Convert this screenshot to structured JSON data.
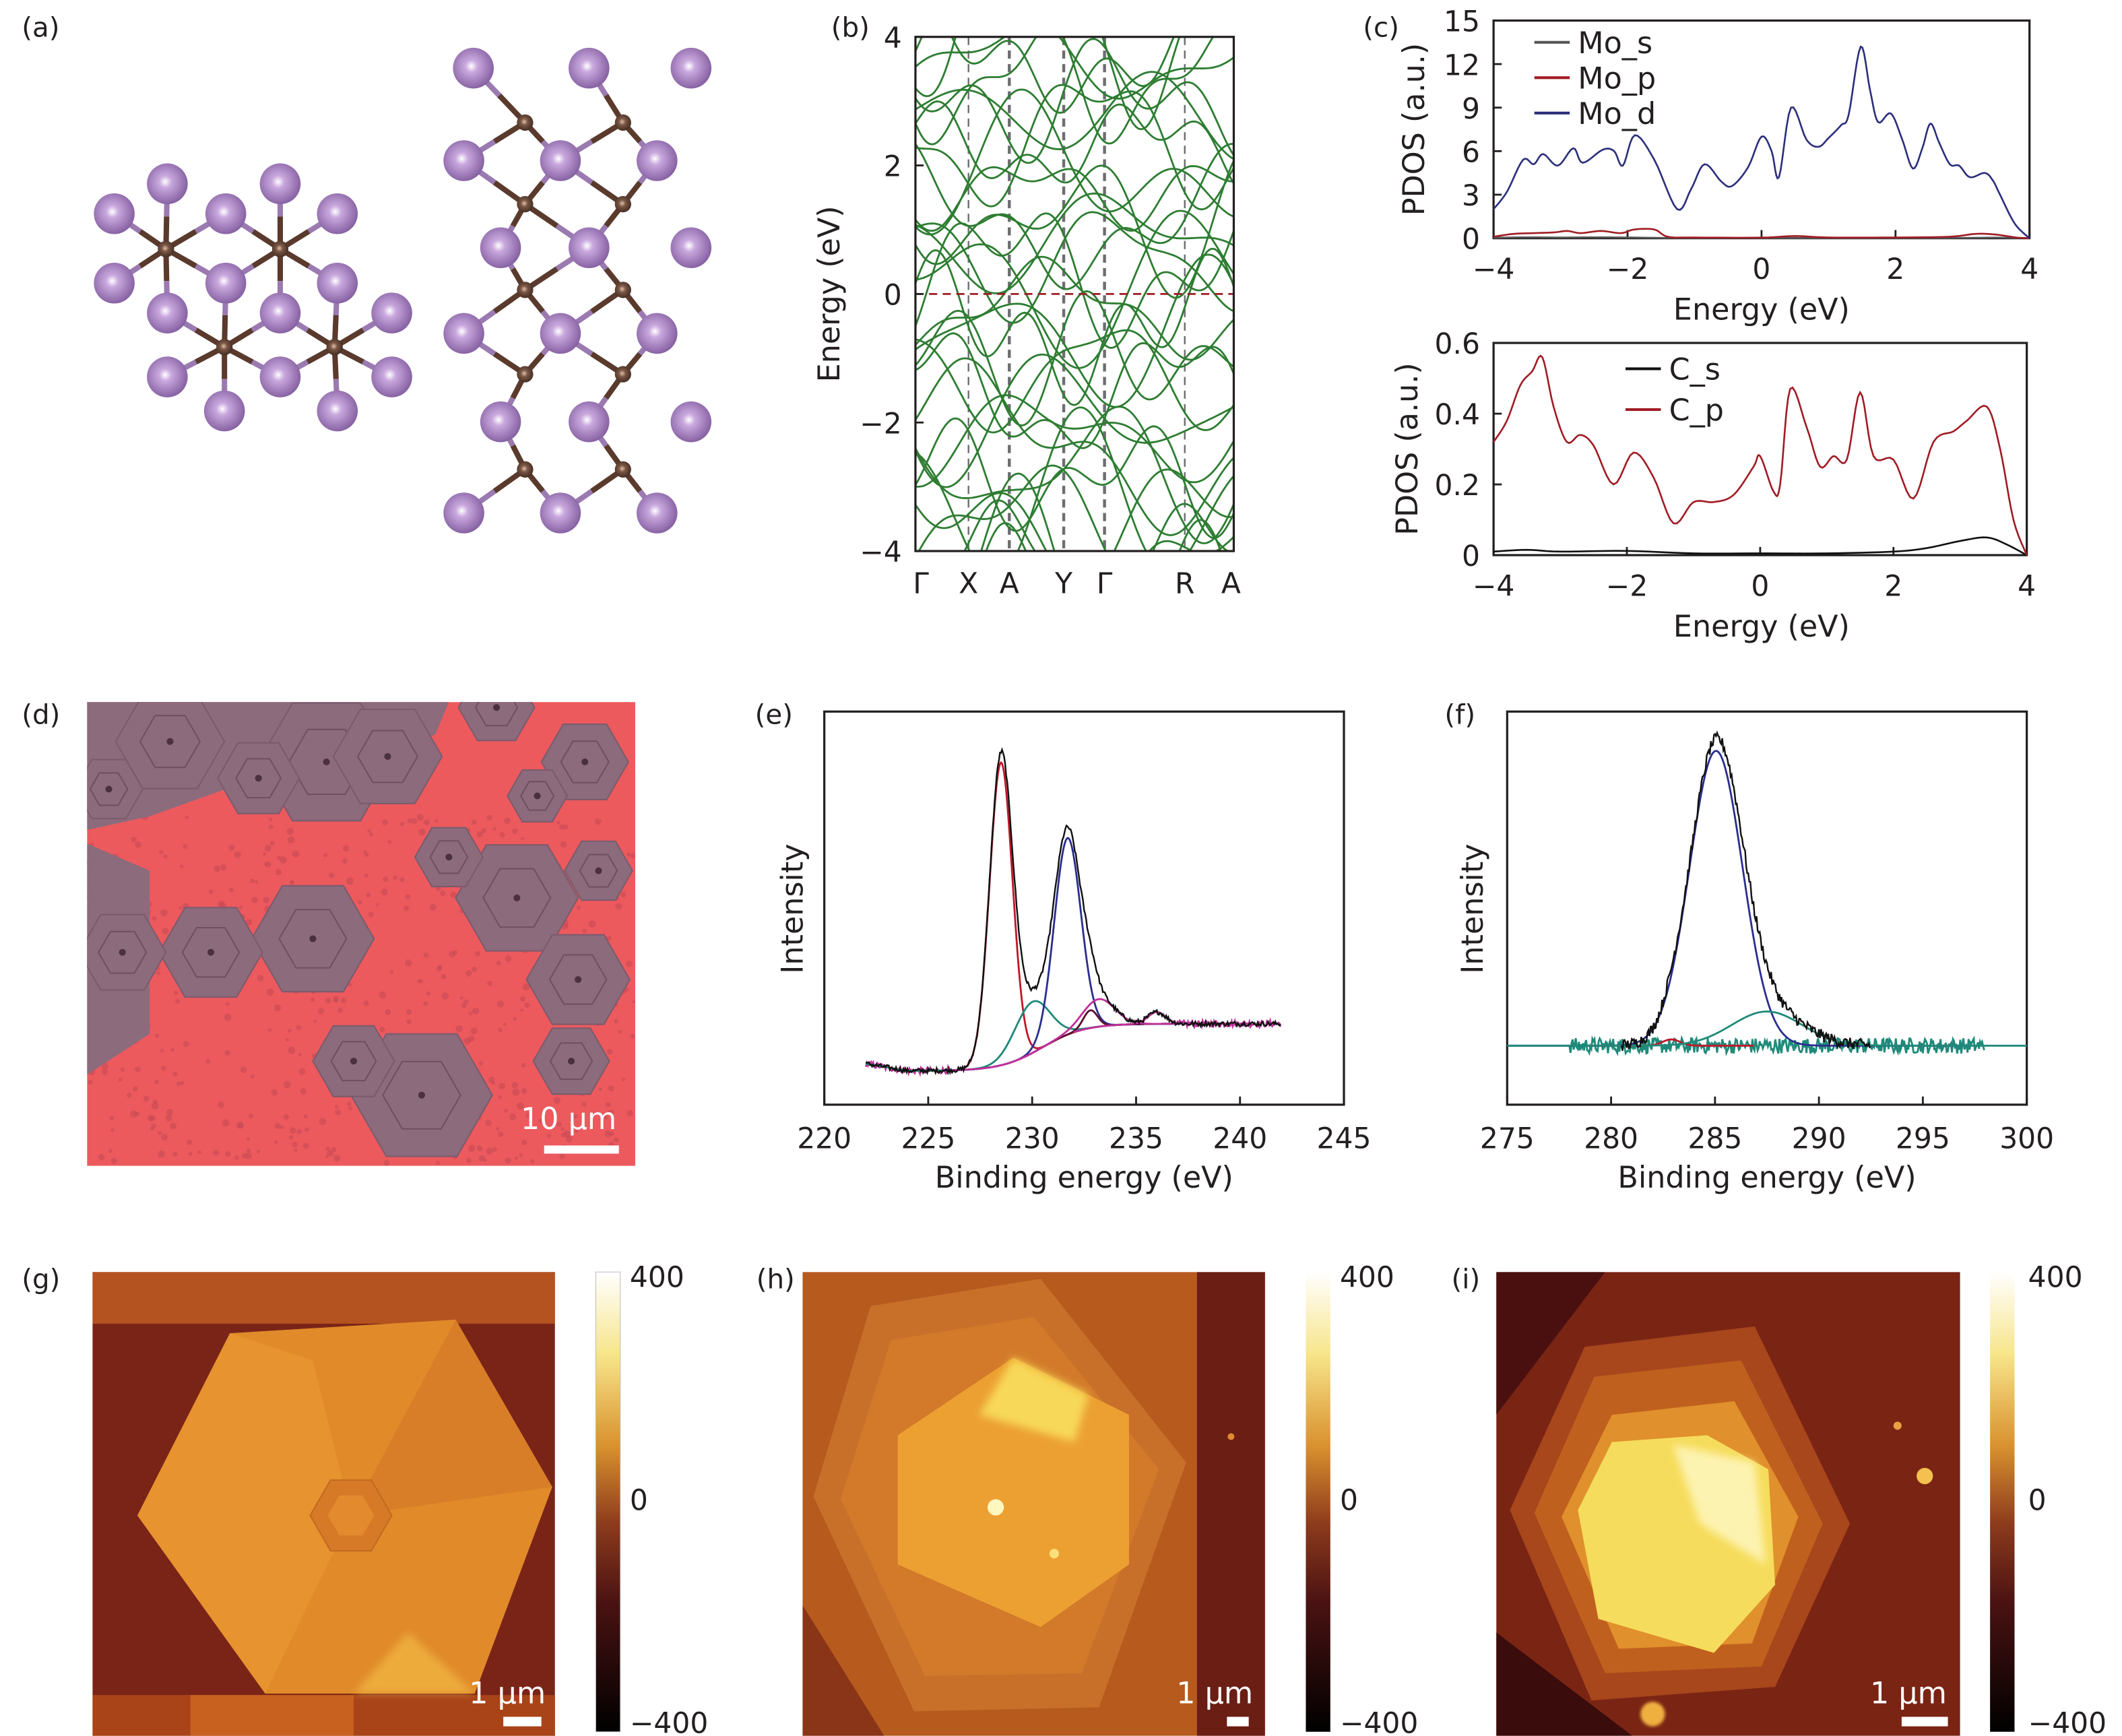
{
  "panel_labels": {
    "a": "(a)",
    "b": "(b)",
    "c": "(c)",
    "d": "(d)",
    "e": "(e)",
    "f": "(f)",
    "g": "(g)",
    "h": "(h)",
    "i": "(i)"
  },
  "colors": {
    "band": "#2e7d32",
    "fermi": "#a01c24",
    "Mo_s": "#555555",
    "Mo_p": "#a01c24",
    "Mo_d": "#2b2f7a",
    "C_s": "#111111",
    "C_p": "#a01c24",
    "xps_data": "#111111",
    "xps_red": "#c0182a",
    "xps_blue": "#2b2f8f",
    "xps_cyan": "#1f8a7a",
    "xps_magenta": "#c0309a",
    "xps_dark": "#5a1030",
    "xps_bg": "#c0309a",
    "atom_large": "#9b74b8",
    "atom_small": "#6a4a3a",
    "substrate": "#ec5a5e",
    "flake": "#8c6b7c"
  },
  "chart_data": [
    {
      "panel": "b",
      "type": "line",
      "ylabel": "Energy (eV)",
      "ylim": [
        -4,
        4
      ],
      "yticks": [
        "4",
        "2",
        "0",
        "−2",
        "−4"
      ],
      "ytick_values": [
        4,
        2,
        0,
        -2,
        -4
      ],
      "kpath_labels": [
        "Γ",
        "X",
        "A",
        "Y",
        "Γ",
        "R",
        "A"
      ],
      "fermi_level": 0,
      "series_note_color": "band"
    },
    {
      "panel": "c-top",
      "type": "line",
      "ylabel": "PDOS (a.u.)",
      "xlabel": "Energy (eV)",
      "xlim": [
        -4,
        4
      ],
      "ylim": [
        0,
        15
      ],
      "xticks": [
        "−4",
        "−2",
        "0",
        "2",
        "4"
      ],
      "xtick_values": [
        -4,
        -2,
        0,
        2,
        4
      ],
      "yticks": [
        "15",
        "12",
        "9",
        "6",
        "3",
        "0"
      ],
      "ytick_values": [
        15,
        12,
        9,
        6,
        3,
        0
      ],
      "legend": "top-left",
      "series": [
        {
          "name": "Mo_s",
          "points": [
            [
              -4,
              0.03
            ],
            [
              -3.5,
              0.06
            ],
            [
              -3,
              0.05
            ],
            [
              -2.5,
              0.06
            ],
            [
              -2,
              0.05
            ],
            [
              -1.4,
              0.02
            ],
            [
              0,
              0.01
            ],
            [
              2,
              0.01
            ],
            [
              3,
              0.02
            ],
            [
              3.5,
              0.04
            ],
            [
              4,
              0
            ]
          ]
        },
        {
          "name": "Mo_p",
          "points": [
            [
              -4,
              0.1
            ],
            [
              -3.7,
              0.3
            ],
            [
              -3.4,
              0.35
            ],
            [
              -3.1,
              0.4
            ],
            [
              -2.9,
              0.5
            ],
            [
              -2.7,
              0.35
            ],
            [
              -2.4,
              0.5
            ],
            [
              -2.1,
              0.35
            ],
            [
              -1.9,
              0.6
            ],
            [
              -1.6,
              0.6
            ],
            [
              -1.4,
              0.1
            ],
            [
              -1,
              0.05
            ],
            [
              0,
              0.04
            ],
            [
              0.5,
              0.15
            ],
            [
              1,
              0.05
            ],
            [
              2,
              0.05
            ],
            [
              2.8,
              0.1
            ],
            [
              3.2,
              0.3
            ],
            [
              3.5,
              0.25
            ],
            [
              3.8,
              0.05
            ],
            [
              4,
              0
            ]
          ]
        },
        {
          "name": "Mo_d",
          "points": [
            [
              -4,
              2.0
            ],
            [
              -3.8,
              3.2
            ],
            [
              -3.56,
              5.4
            ],
            [
              -3.4,
              5.1
            ],
            [
              -3.26,
              5.8
            ],
            [
              -3.04,
              5.0
            ],
            [
              -2.81,
              6.2
            ],
            [
              -2.67,
              5.2
            ],
            [
              -2.37,
              6.1
            ],
            [
              -2.2,
              6.0
            ],
            [
              -2.07,
              5.0
            ],
            [
              -1.89,
              7.1
            ],
            [
              -1.6,
              5.4
            ],
            [
              -1.26,
              2.0
            ],
            [
              -1.05,
              3.4
            ],
            [
              -0.85,
              5.1
            ],
            [
              -0.6,
              3.9
            ],
            [
              -0.44,
              3.6
            ],
            [
              -0.2,
              4.9
            ],
            [
              0,
              7.0
            ],
            [
              0.15,
              6.0
            ],
            [
              0.26,
              4.2
            ],
            [
              0.44,
              9.0
            ],
            [
              0.67,
              6.8
            ],
            [
              0.85,
              6.3
            ],
            [
              1.0,
              6.9
            ],
            [
              1.19,
              7.8
            ],
            [
              1.3,
              8.5
            ],
            [
              1.48,
              13.2
            ],
            [
              1.62,
              10.2
            ],
            [
              1.74,
              8.0
            ],
            [
              1.93,
              8.6
            ],
            [
              2.1,
              6.8
            ],
            [
              2.26,
              4.8
            ],
            [
              2.4,
              6.2
            ],
            [
              2.52,
              7.9
            ],
            [
              2.65,
              6.6
            ],
            [
              2.81,
              5.1
            ],
            [
              2.95,
              5.0
            ],
            [
              3.11,
              4.2
            ],
            [
              3.33,
              4.5
            ],
            [
              3.45,
              4.0
            ],
            [
              3.56,
              3.0
            ],
            [
              3.78,
              1.0
            ],
            [
              4,
              0
            ]
          ]
        }
      ]
    },
    {
      "panel": "c-bottom",
      "type": "line",
      "ylabel": "PDOS (a.u.)",
      "xlabel": "Energy (eV)",
      "xlim": [
        -4,
        4
      ],
      "ylim": [
        0,
        0.6
      ],
      "xticks": [
        "−4",
        "−2",
        "0",
        "2",
        "4"
      ],
      "xtick_values": [
        -4,
        -2,
        0,
        2,
        4
      ],
      "yticks": [
        "0.6",
        "0.4",
        "0.2",
        "0"
      ],
      "ytick_values": [
        0.6,
        0.4,
        0.2,
        0
      ],
      "legend": "top-center",
      "series": [
        {
          "name": "C_s",
          "points": [
            [
              -4,
              0.01
            ],
            [
              -3.5,
              0.015
            ],
            [
              -3,
              0.01
            ],
            [
              -2,
              0.012
            ],
            [
              -1,
              0.005
            ],
            [
              0,
              0.005
            ],
            [
              1,
              0.005
            ],
            [
              2,
              0.01
            ],
            [
              2.5,
              0.02
            ],
            [
              3,
              0.04
            ],
            [
              3.4,
              0.05
            ],
            [
              3.7,
              0.03
            ],
            [
              4,
              0
            ]
          ]
        },
        {
          "name": "C_p",
          "points": [
            [
              -4,
              0.32
            ],
            [
              -3.8,
              0.38
            ],
            [
              -3.6,
              0.48
            ],
            [
              -3.42,
              0.52
            ],
            [
              -3.27,
              0.56
            ],
            [
              -3.1,
              0.42
            ],
            [
              -2.9,
              0.32
            ],
            [
              -2.7,
              0.34
            ],
            [
              -2.5,
              0.31
            ],
            [
              -2.2,
              0.2
            ],
            [
              -1.9,
              0.29
            ],
            [
              -1.6,
              0.22
            ],
            [
              -1.3,
              0.09
            ],
            [
              -1.0,
              0.15
            ],
            [
              -0.7,
              0.15
            ],
            [
              -0.4,
              0.17
            ],
            [
              -0.1,
              0.25
            ],
            [
              0.0,
              0.28
            ],
            [
              0.2,
              0.18
            ],
            [
              0.3,
              0.2
            ],
            [
              0.45,
              0.47
            ],
            [
              0.7,
              0.36
            ],
            [
              0.9,
              0.25
            ],
            [
              1.1,
              0.28
            ],
            [
              1.3,
              0.27
            ],
            [
              1.5,
              0.46
            ],
            [
              1.7,
              0.28
            ],
            [
              2.0,
              0.27
            ],
            [
              2.3,
              0.16
            ],
            [
              2.6,
              0.32
            ],
            [
              2.9,
              0.35
            ],
            [
              3.1,
              0.38
            ],
            [
              3.4,
              0.42
            ],
            [
              3.6,
              0.3
            ],
            [
              3.8,
              0.1
            ],
            [
              4.0,
              0.0
            ]
          ]
        }
      ]
    },
    {
      "panel": "e",
      "type": "line",
      "ylabel": "Intensity",
      "xlabel": "Binding energy (eV)",
      "xlim": [
        220,
        245
      ],
      "ylim": [
        0,
        100
      ],
      "data_range": [
        222,
        242
      ],
      "xticks": [
        "220",
        "225",
        "230",
        "235",
        "240",
        "245"
      ],
      "xtick_values": [
        220,
        225,
        230,
        235,
        240,
        245
      ],
      "background": {
        "low": 8.6,
        "high": 20.6,
        "center": 230.5
      },
      "peaks": [
        {
          "color": "xps_red",
          "center": 228.5,
          "height": 77,
          "fwhm": 1.3
        },
        {
          "color": "xps_cyan",
          "center": 230.0,
          "height": 13,
          "fwhm": 2.0
        },
        {
          "color": "xps_blue",
          "center": 231.7,
          "height": 50,
          "fwhm": 1.5
        },
        {
          "color": "xps_dark",
          "center": 232.8,
          "height": 4.5,
          "fwhm": 0.8
        },
        {
          "color": "xps_magenta",
          "center": 233.2,
          "height": 7,
          "fwhm": 1.8
        },
        {
          "color": "xps_magenta",
          "center": 236.0,
          "height": 3,
          "fwhm": 1.0
        }
      ]
    },
    {
      "panel": "f",
      "type": "line",
      "ylabel": "Intensity",
      "xlabel": "Binding energy (eV)",
      "xlim": [
        275,
        300
      ],
      "ylim": [
        0,
        100
      ],
      "data_range": [
        280.5,
        292.5
      ],
      "background_range": [
        278,
        298
      ],
      "xticks": [
        "275",
        "280",
        "285",
        "290",
        "295",
        "300"
      ],
      "xtick_values": [
        275,
        280,
        285,
        290,
        295,
        300
      ],
      "background": {
        "level": 15
      },
      "peaks": [
        {
          "color": "xps_red",
          "center": 282.9,
          "height": 1.6,
          "fwhm": 1.0
        },
        {
          "color": "xps_blue",
          "center": 285.05,
          "height": 75,
          "fwhm": 3.0
        },
        {
          "color": "xps_cyan",
          "center": 287.5,
          "height": 8.7,
          "fwhm": 4.0
        }
      ]
    }
  ],
  "images": {
    "d": {
      "scalebar": "10 µm"
    },
    "g": {
      "scalebar": "1 µm",
      "colorbar": {
        "max": "400",
        "mid": "0",
        "min": "−400"
      }
    },
    "h": {
      "scalebar": "1 µm",
      "colorbar": {
        "max": "400",
        "mid": "0",
        "min": "−400"
      }
    },
    "i": {
      "scalebar": "1 µm",
      "colorbar": {
        "max": "400",
        "mid": "0",
        "min": "−400"
      }
    }
  }
}
